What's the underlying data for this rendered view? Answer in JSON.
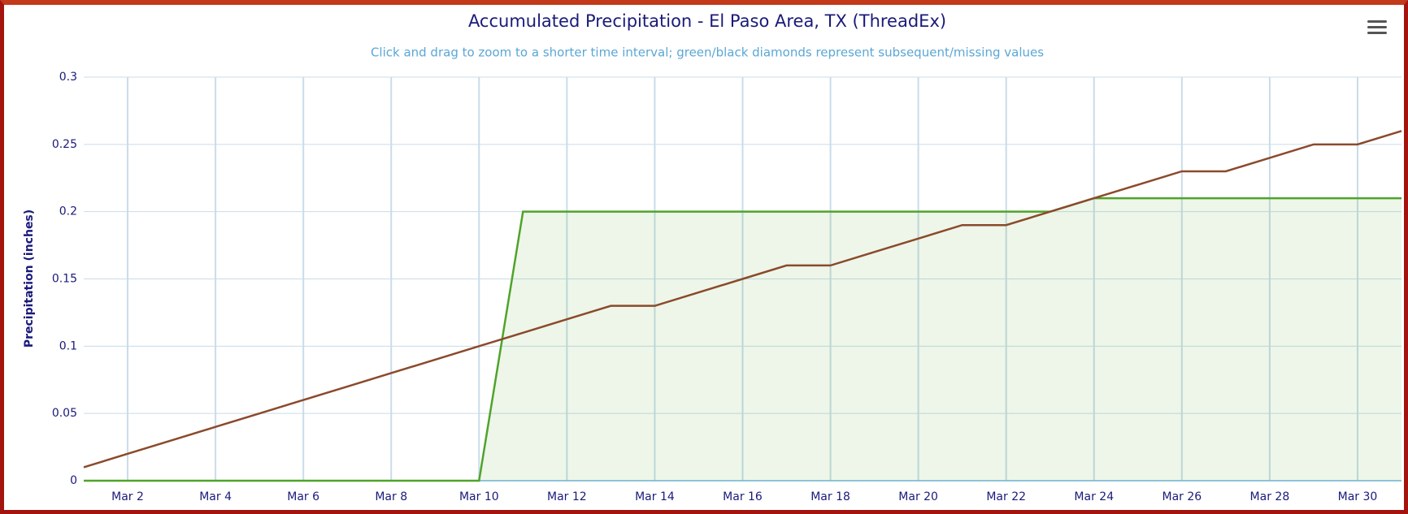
{
  "chart_data": {
    "type": "line",
    "title": "Accumulated Precipitation - El Paso Area, TX (ThreadEx)",
    "subtitle": "Click and drag to zoom to a shorter time interval; green/black diamonds represent subsequent/missing values",
    "y_label": "Precipitation (inches)",
    "x": [
      1,
      2,
      3,
      4,
      5,
      6,
      7,
      8,
      9,
      10,
      11,
      12,
      13,
      14,
      15,
      16,
      17,
      18,
      19,
      20,
      21,
      22,
      23,
      24,
      25,
      26,
      27,
      28,
      29,
      30,
      31
    ],
    "xlim": [
      1,
      31
    ],
    "xticks": [
      {
        "value": 2,
        "label": "Mar 2"
      },
      {
        "value": 4,
        "label": "Mar 4"
      },
      {
        "value": 6,
        "label": "Mar 6"
      },
      {
        "value": 8,
        "label": "Mar 8"
      },
      {
        "value": 10,
        "label": "Mar 10"
      },
      {
        "value": 12,
        "label": "Mar 12"
      },
      {
        "value": 14,
        "label": "Mar 14"
      },
      {
        "value": 16,
        "label": "Mar 16"
      },
      {
        "value": 18,
        "label": "Mar 18"
      },
      {
        "value": 20,
        "label": "Mar 20"
      },
      {
        "value": 22,
        "label": "Mar 22"
      },
      {
        "value": 24,
        "label": "Mar 24"
      },
      {
        "value": 26,
        "label": "Mar 26"
      },
      {
        "value": 28,
        "label": "Mar 28"
      },
      {
        "value": 30,
        "label": "Mar 30"
      }
    ],
    "ylim": [
      0,
      0.3
    ],
    "yticks": [
      0,
      0.05,
      0.1,
      0.15,
      0.2,
      0.25,
      0.3
    ],
    "grid": true,
    "series": [
      {
        "color": "#8b4a2b",
        "area": false,
        "values": [
          0.01,
          0.02,
          0.03,
          0.04,
          0.05,
          0.06,
          0.07,
          0.08,
          0.09,
          0.1,
          0.11,
          0.12,
          0.13,
          0.13,
          0.14,
          0.15,
          0.16,
          0.16,
          0.17,
          0.18,
          0.19,
          0.19,
          0.2,
          0.21,
          0.22,
          0.23,
          0.23,
          0.24,
          0.25,
          0.25,
          0.26
        ]
      },
      {
        "color": "#4fa32a",
        "area": true,
        "values": [
          0,
          0,
          0,
          0,
          0,
          0,
          0,
          0,
          0,
          0,
          0.2,
          0.2,
          0.2,
          0.2,
          0.2,
          0.2,
          0.2,
          0.2,
          0.2,
          0.2,
          0.2,
          0.2,
          0.2,
          0.21,
          0.21,
          0.21,
          0.21,
          0.21,
          0.21,
          0.21,
          0.21
        ]
      }
    ]
  }
}
